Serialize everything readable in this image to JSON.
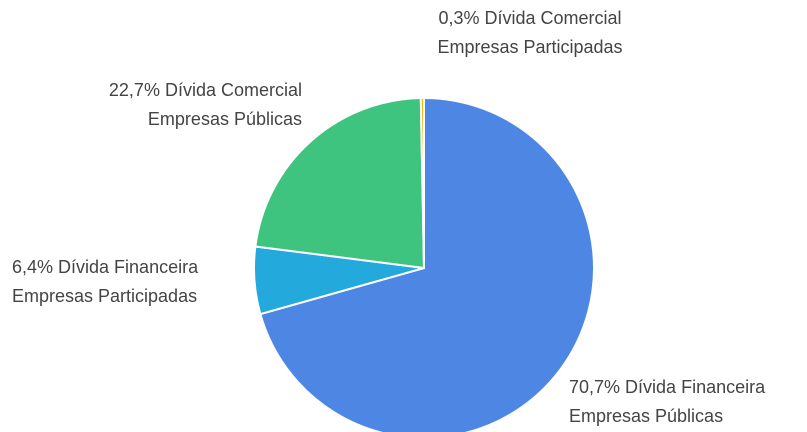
{
  "chart_data": {
    "type": "pie",
    "categories": [
      "Dívida Financeira\nEmpresas Públicas",
      "Dívida Financeira\nEmpresas Participadas",
      "Dívida Comercial\nEmpresas Públicas",
      "Dívida Comercial\nEmpresas Participadas"
    ],
    "values": [
      70.7,
      6.4,
      22.7,
      0.3
    ],
    "value_labels": [
      "70,7%",
      "6,4%",
      "22,7%",
      "0,3%"
    ],
    "colors": [
      "#4e86e4",
      "#23a9db",
      "#3ec47e",
      "#f4b400"
    ]
  }
}
